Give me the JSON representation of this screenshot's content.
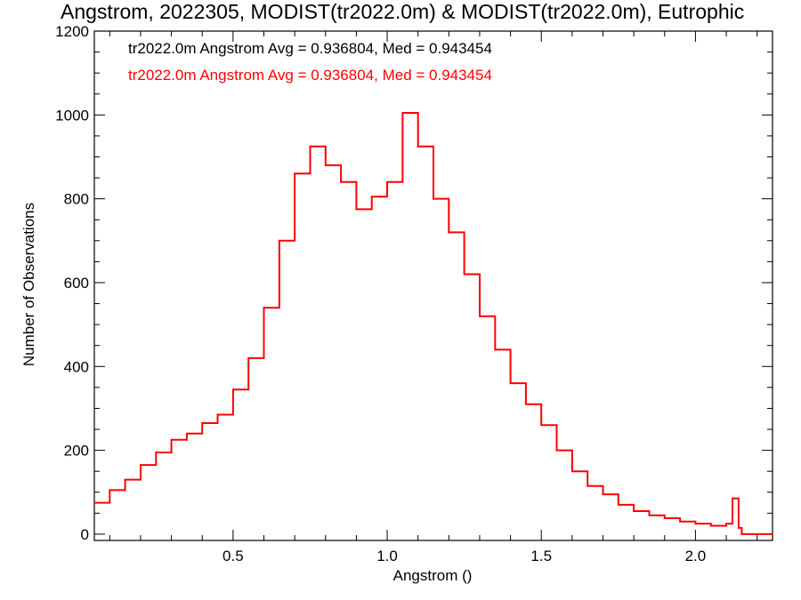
{
  "chart_data": {
    "type": "step",
    "title": "Angstrom, 2022305, MODIST(tr2022.0m) & MODIST(tr2022.0m), Eutrophic",
    "xlabel": "Angstrom ()",
    "ylabel": "Number of Observations",
    "xlim": [
      0.05,
      2.25
    ],
    "ylim": [
      -15,
      1200
    ],
    "xticks": [
      0.5,
      1.0,
      1.5,
      2.0
    ],
    "xtick_labels": [
      "0.5",
      "1.0",
      "1.5",
      "2.0"
    ],
    "yticks": [
      0,
      200,
      400,
      600,
      800,
      1000,
      1200
    ],
    "ytick_labels": [
      "0",
      "200",
      "400",
      "600",
      "800",
      "1000",
      "1200"
    ],
    "annotations": [
      "tr2022.0m Angstrom Avg = 0.936804, Med = 0.943454",
      "tr2022.0m Angstrom Avg = 0.936804, Med = 0.943454"
    ],
    "series_color": "#ff0000",
    "grid": false,
    "x": [
      0.05,
      0.1,
      0.15,
      0.2,
      0.25,
      0.3,
      0.35,
      0.4,
      0.45,
      0.5,
      0.55,
      0.6,
      0.65,
      0.7,
      0.75,
      0.8,
      0.85,
      0.9,
      0.95,
      1.0,
      1.05,
      1.1,
      1.15,
      1.2,
      1.25,
      1.3,
      1.35,
      1.4,
      1.45,
      1.5,
      1.55,
      1.6,
      1.65,
      1.7,
      1.75,
      1.8,
      1.85,
      1.9,
      1.95,
      2.0,
      2.05,
      2.1,
      2.12,
      2.14,
      2.15,
      2.17,
      2.2,
      2.25
    ],
    "y": [
      75,
      105,
      130,
      165,
      195,
      225,
      240,
      265,
      285,
      345,
      420,
      540,
      700,
      860,
      925,
      880,
      840,
      775,
      805,
      840,
      1005,
      925,
      800,
      720,
      620,
      520,
      440,
      360,
      310,
      260,
      200,
      150,
      115,
      95,
      70,
      55,
      45,
      38,
      30,
      25,
      20,
      25,
      85,
      15,
      0,
      0,
      0,
      0
    ]
  }
}
